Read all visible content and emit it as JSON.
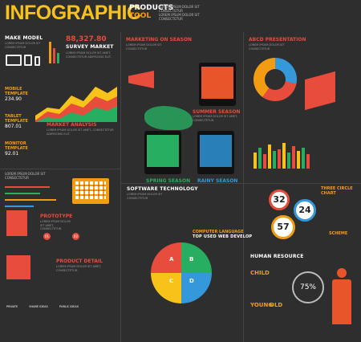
{
  "header": {
    "title": "INFOGRAPHIC",
    "subtitle_line1": "PRODUCTS",
    "subtitle_line2": "TOOL"
  },
  "make_model": {
    "title": "MAKE MODEL",
    "text": "LOREM IPSUM DOLOR SIT CONSECTETUR"
  },
  "survey": {
    "value": "88,327.80",
    "title": "SURVEY MARKET",
    "text": "LOREM IPSUM DOLOR SIT AMET, CONSECTETUR ADIPISCING ELIT."
  },
  "mobile": {
    "label": "MOBILE TEMPLATE",
    "value": "234.90"
  },
  "tablet": {
    "label": "TABLET TEMPLATE",
    "value": "807.01"
  },
  "monitor": {
    "label": "MONITOR TEMPLATE",
    "value": "92.01"
  },
  "market_analysis": {
    "title": "MARKET ANALYSIS",
    "text": "LOREM IPSUM DOLOR SIT AMET, CONSECTETUR ADIPISCING ELIT."
  },
  "marketing": {
    "title": "MARKETING ON SEASON",
    "text": "LOREM IPSUM DOLOR SIT CONSECTETUR"
  },
  "summer": {
    "title": "SUMMER SEASON",
    "text": "LOREM IPSUM DOLOR SIT AMET, CONSECTETUR."
  },
  "spring": {
    "title": "SPRING SEASON",
    "text": "LOREM IPSUM DOLOR SIT AMET, CONSECTETUR."
  },
  "rainy": {
    "title": "RAINY SEASON",
    "text": "LOREM IPSUM DOLOR SIT AMET, CONSECTETUR."
  },
  "abcd": {
    "title": "ABCD PRESENTATION",
    "text": "LOREM IPSUM DOLOR SIT CONSECTETUR",
    "labels": [
      "A",
      "B",
      "C",
      "D"
    ]
  },
  "three_circle": {
    "title": "THREE CIRCLE CHART",
    "values": [
      "32",
      "24",
      "57"
    ]
  },
  "prototype": {
    "title": "PROTOTYPE",
    "text": "LOREM IPSUM DOLOR SIT AMET, CONSECTETUR.",
    "nums": [
      "01",
      "02"
    ]
  },
  "product_detail": {
    "title": "PRODUCT DETAIL",
    "text": "LOREM IPSUM DOLOR SIT AMET, CONSECTETUR."
  },
  "software": {
    "title": "SOFTWARE TECHNOLOGY",
    "text": "LOREM IPSUM DOLOR SIT CONSECTETUR",
    "labels": [
      "A",
      "B",
      "C",
      "D"
    ]
  },
  "computer_language": {
    "title": "COMPUTER LANGUAGE",
    "subtitle": "TOP USED WEB DEVELOP",
    "text": "LOREM IPSUM DOLOR SIT AMET, CONSECTETUR."
  },
  "human_resource": {
    "title": "HUMAN RESOURCE",
    "text": "LOREM IPSUM DOLOR SIT CONSECTETUR",
    "child": "CHILD",
    "young": "YOUNG",
    "old": "OLD",
    "percent": "75%",
    "scheme": "SCHEME"
  },
  "bottom": {
    "labels": [
      "PRIVATE",
      "SHARE IDEAS",
      "PUBLIC IDEAS"
    ]
  },
  "lorem_short": "LOREM IPSUM DOLOR SIT CONSECTETUR"
}
